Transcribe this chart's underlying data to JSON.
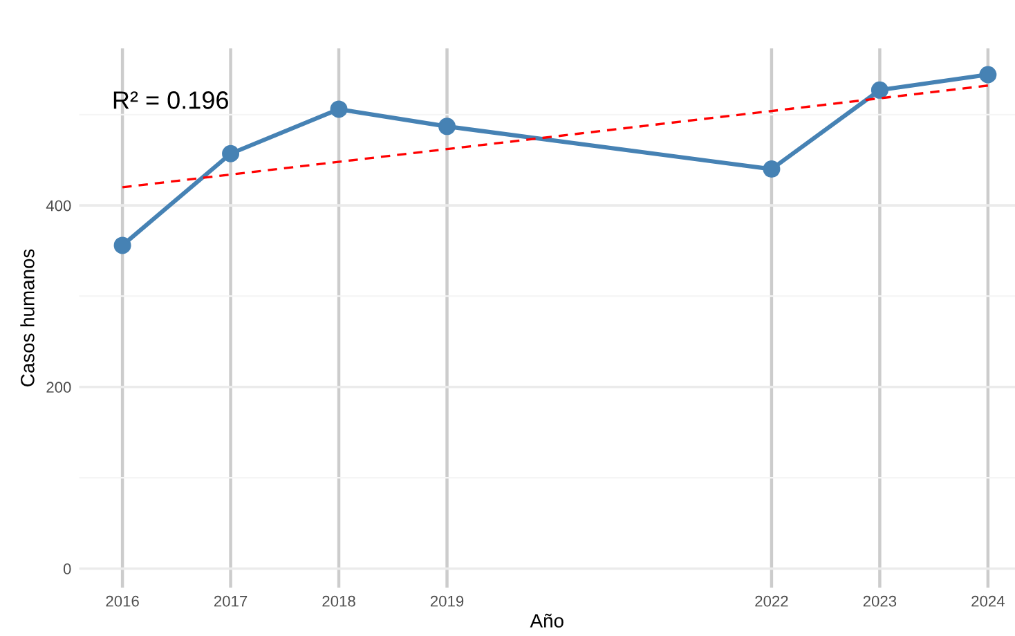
{
  "chart_data": {
    "type": "line",
    "xlabel": "Año",
    "ylabel": "Casos humanos",
    "annotations": [
      "R² = 0.196"
    ],
    "x": [
      2016,
      2017,
      2018,
      2019,
      2022,
      2023,
      2024
    ],
    "series": [
      {
        "color": "#4682b4",
        "values": [
          356,
          457,
          506,
          487,
          440,
          527,
          544
        ],
        "marker": "circle",
        "line_style": "solid"
      },
      {
        "type": "line",
        "x": [
          2016,
          2024
        ],
        "color": "#ff0000",
        "values": [
          420,
          532
        ],
        "marker": "none",
        "line_style": "dashed"
      }
    ],
    "xlim": [
      2015.6,
      2024.25
    ],
    "ylim": [
      -21,
      573
    ],
    "xticks": [
      2016,
      2017,
      2018,
      2019,
      2022,
      2023,
      2024
    ],
    "yticks": [
      0,
      {
        "value": 100,
        "label": null
      },
      200,
      {
        "value": 300,
        "label": null
      },
      400,
      {
        "value": 500,
        "label": null
      }
    ],
    "grid": true,
    "legend": false
  }
}
